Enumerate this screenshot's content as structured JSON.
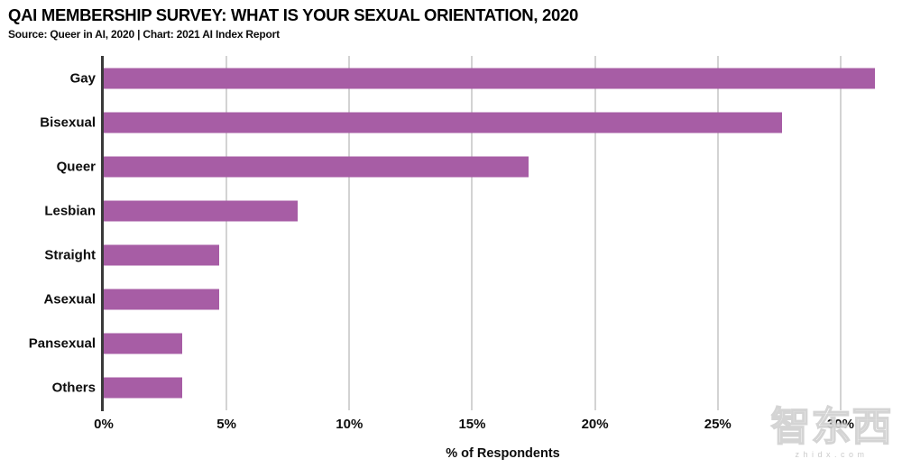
{
  "header": {
    "title": "QAI MEMBERSHIP SURVEY: WHAT IS YOUR SEXUAL ORIENTATION, 2020",
    "source_line": "Source: Queer in AI, 2020 | Chart: 2021 AI Index Report"
  },
  "chart_data": {
    "type": "bar",
    "orientation": "horizontal",
    "title": "QAI MEMBERSHIP SURVEY: WHAT IS YOUR SEXUAL ORIENTATION, 2020",
    "categories": [
      "Gay",
      "Bisexual",
      "Queer",
      "Lesbian",
      "Straight",
      "Asexual",
      "Pansexual",
      "Others"
    ],
    "values": [
      31.4,
      27.6,
      17.3,
      7.9,
      4.7,
      4.7,
      3.2,
      3.2
    ],
    "xlabel": "% of Respondents",
    "ylabel": "",
    "xlim": [
      0,
      32.5
    ],
    "xticks": [
      0,
      5,
      10,
      15,
      20,
      25,
      30
    ],
    "xtick_labels": [
      "0%",
      "5%",
      "10%",
      "15%",
      "20%",
      "25%",
      "30%"
    ],
    "grid": "vertical",
    "legend": "none"
  },
  "colors": {
    "bar": "#a75da5",
    "axis": "#3a3a3a",
    "gridline": "#d3d3d3",
    "text": "#0d0d0d",
    "background": "#ffffff",
    "watermark": "#bababa"
  },
  "watermark": {
    "logo_text": "智东西",
    "site_text": "zhidx.com"
  }
}
